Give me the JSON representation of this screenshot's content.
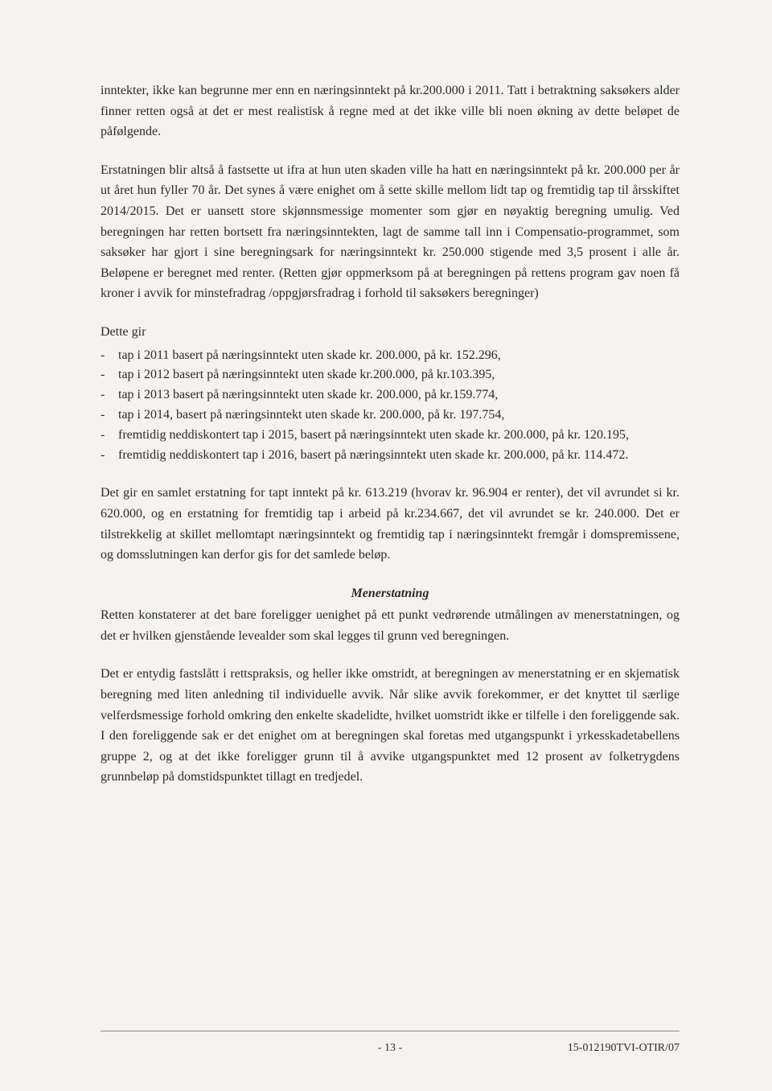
{
  "paragraphs": {
    "p1": "inntekter, ikke kan begrunne mer enn en næringsinntekt på kr.200.000 i 2011. Tatt i betraktning saksøkers alder finner retten også at det er mest realistisk å regne med at det ikke ville bli noen økning av dette beløpet de påfølgende.",
    "p2": "Erstatningen blir altså å fastsette ut ifra at hun uten skaden ville ha hatt en næringsinntekt på kr. 200.000 per år ut året hun fyller 70 år. Det synes å være enighet om å sette skille mellom lidt tap og fremtidig tap til årsskiftet 2014/2015. Det er uansett store skjønnsmessige momenter som gjør en nøyaktig beregning umulig. Ved beregningen har retten bortsett fra næringsinntekten, lagt de samme tall inn i Compensatio-programmet, som saksøker har gjort i sine beregningsark for næringsinntekt kr. 250.000 stigende med 3,5 prosent i alle år. Beløpene er beregnet med renter. (Retten gjør oppmerksom på at beregningen på rettens program gav noen få kroner i avvik for minstefradrag /oppgjørsfradrag i forhold til saksøkers beregninger)",
    "intro": "Dette gir",
    "p3": "Det gir en samlet erstatning for tapt inntekt på kr. 613.219 (hvorav kr. 96.904 er renter), det vil avrundet si kr. 620.000, og en erstatning for fremtidig tap i arbeid på kr.234.667, det vil avrundet se kr. 240.000. Det er tilstrekkelig at skillet mellomtapt næringsinntekt og fremtidig tap i næringsinntekt fremgår i domspremissene, og domsslutningen kan derfor gis for det samlede beløp.",
    "heading": "Menerstatning",
    "p4": "Retten konstaterer at det bare foreligger uenighet på ett punkt vedrørende utmålingen av menerstatningen, og det er hvilken gjenstående levealder som skal legges til grunn ved beregningen.",
    "p5": "Det er entydig fastslått i rettspraksis, og heller ikke omstridt, at beregningen av menerstatning er en skjematisk beregning med liten anledning til individuelle avvik. Når slike avvik forekommer, er det knyttet til særlige velferdsmessige forhold omkring den enkelte skadelidte, hvilket uomstridt ikke er tilfelle i den foreliggende sak. I den foreliggende sak er det enighet om at beregningen skal foretas med utgangspunkt i yrkesskadetabellens gruppe 2, og at det ikke foreligger grunn til å avvike utgangspunktet med 12 prosent av folketrygdens grunnbeløp på domstidspunktet tillagt en tredjedel."
  },
  "list_items": [
    "tap i 2011 basert på næringsinntekt uten skade kr. 200.000, på kr. 152.296,",
    "tap i 2012 basert på næringsinntekt uten skade kr.200.000, på kr.103.395,",
    "tap i 2013 basert på næringsinntekt uten skade kr. 200.000, på kr.159.774,",
    "tap i 2014, basert på næringsinntekt uten skade kr. 200.000, på kr. 197.754,",
    "fremtidig neddiskontert tap i 2015, basert på næringsinntekt uten skade kr. 200.000, på kr. 120.195,",
    "fremtidig neddiskontert tap i 2016, basert på næringsinntekt uten skade kr. 200.000, på kr. 114.472."
  ],
  "footer": {
    "page": "- 13 -",
    "case_ref": "15-012190TVI-OTIR/07"
  }
}
